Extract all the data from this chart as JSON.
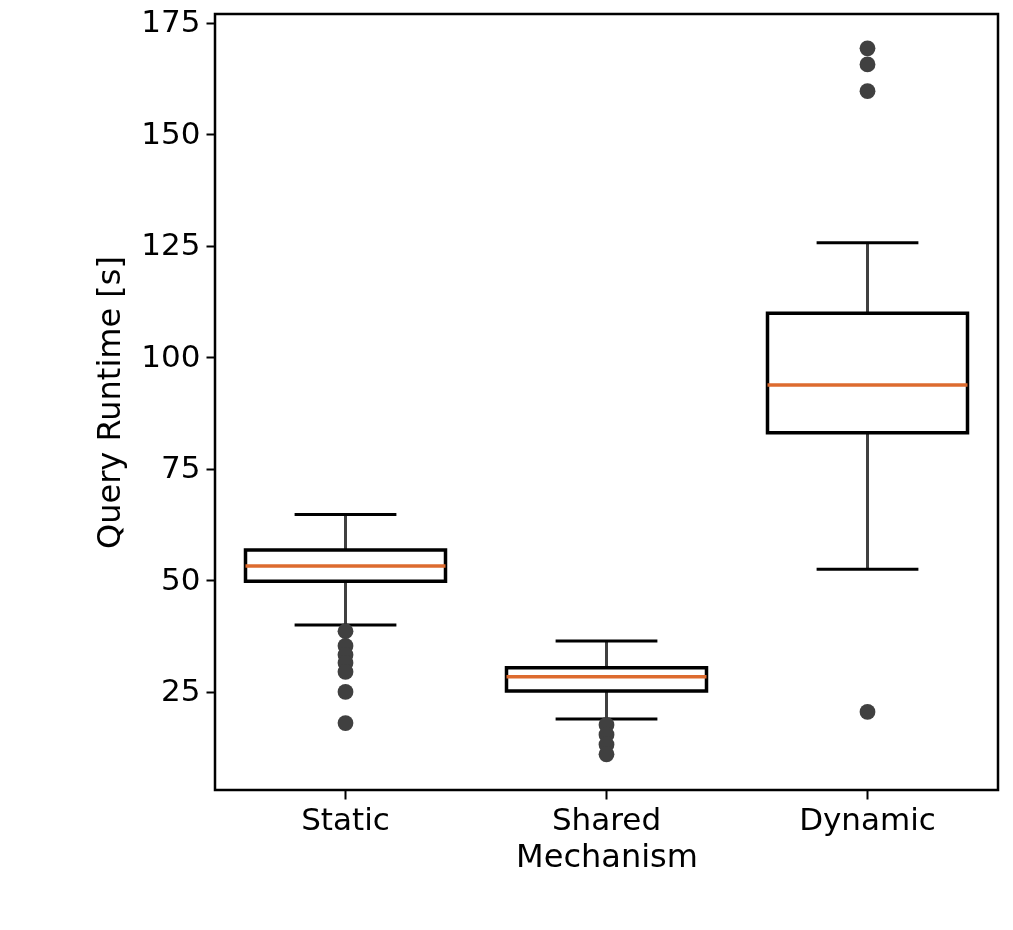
{
  "chart_data": {
    "type": "box",
    "xlabel": "Mechanism",
    "ylabel": "Query Runtime [s]",
    "categories": [
      "Static",
      "Shared",
      "Dynamic"
    ],
    "boxes": [
      {
        "low": 40,
        "q1": 49.8,
        "median": 53.2,
        "q3": 56.8,
        "high": 64.8,
        "outliers": [
          38.6,
          35.3,
          33.3,
          31.5,
          29.5,
          25,
          18
        ]
      },
      {
        "low": 18.9,
        "q1": 25.2,
        "median": 28.4,
        "q3": 30.4,
        "high": 36.4,
        "outliers": [
          17.6,
          15.4,
          13.2,
          11
        ]
      },
      {
        "low": 52.5,
        "q1": 83.1,
        "median": 93.8,
        "q3": 109.9,
        "high": 125.7,
        "outliers": [
          169.3,
          165.7,
          159.7,
          20.5
        ]
      }
    ],
    "ylim": [
      3,
      177
    ],
    "yticks": [
      25,
      50,
      75,
      100,
      125,
      150,
      175
    ],
    "grid": false
  }
}
